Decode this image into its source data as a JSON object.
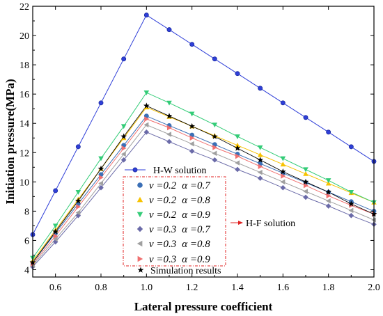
{
  "chart_data": {
    "type": "line",
    "title": "",
    "xlabel": "Lateral pressure coefficient",
    "ylabel": "Initiation pressure(MPa)",
    "xlim": [
      0.5,
      2.0
    ],
    "ylim": [
      3.5,
      22
    ],
    "x_ticks": [
      "0.6",
      "0.8",
      "1.0",
      "1.2",
      "1.4",
      "1.6",
      "1.8",
      "2.0"
    ],
    "x_tick_values": [
      0.6,
      0.8,
      1.0,
      1.2,
      1.4,
      1.6,
      1.8,
      2.0
    ],
    "y_ticks": [
      "4",
      "6",
      "8",
      "10",
      "12",
      "14",
      "16",
      "18",
      "20",
      "22"
    ],
    "y_tick_values": [
      4,
      6,
      8,
      10,
      12,
      14,
      16,
      18,
      20,
      22
    ],
    "grid": false,
    "legend_position": "bottom-left",
    "group_label": "H-F solution",
    "x": [
      0.5,
      0.6,
      0.7,
      0.8,
      0.9,
      1.0,
      1.1,
      1.2,
      1.3,
      1.4,
      1.5,
      1.6,
      1.7,
      1.8,
      1.9,
      2.0
    ],
    "series": [
      {
        "name": "H-W solution",
        "marker": "circle-line",
        "color": "#2f3fd8",
        "values": [
          6.4,
          9.4,
          12.4,
          15.4,
          18.4,
          21.4,
          20.4,
          19.4,
          18.4,
          17.4,
          16.4,
          15.4,
          14.4,
          13.4,
          12.4,
          11.4
        ]
      },
      {
        "nu": "ν =0.2",
        "alpha": "α =0.7",
        "marker": "circle",
        "color": "#3b6fb6",
        "values": [
          4.5,
          6.5,
          8.5,
          10.5,
          12.5,
          14.5,
          13.85,
          13.2,
          12.55,
          11.9,
          11.25,
          10.6,
          9.95,
          9.3,
          8.65,
          8.0
        ]
      },
      {
        "nu": "ν =0.2",
        "alpha": "α =0.8",
        "marker": "triangle-up",
        "color": "#f7c200",
        "values": [
          4.6,
          6.7,
          8.8,
          10.9,
          13.0,
          15.1,
          14.45,
          13.8,
          13.15,
          12.5,
          11.85,
          11.2,
          10.55,
          9.9,
          9.25,
          8.6
        ]
      },
      {
        "nu": "ν =0.2",
        "alpha": "α =0.9",
        "marker": "triangle-down",
        "color": "#33cc77",
        "values": [
          4.8,
          7.0,
          9.3,
          11.6,
          13.8,
          16.1,
          15.4,
          14.65,
          13.9,
          13.1,
          12.35,
          11.6,
          10.85,
          10.1,
          9.3,
          8.6
        ]
      },
      {
        "nu": "ν =0.3",
        "alpha": "α =0.7",
        "marker": "diamond",
        "color": "#6a6aa8",
        "values": [
          4.2,
          5.9,
          7.7,
          9.6,
          11.5,
          13.4,
          12.75,
          12.1,
          11.5,
          10.85,
          10.25,
          9.6,
          8.95,
          8.35,
          7.7,
          7.1
        ]
      },
      {
        "nu": "ν =0.3",
        "alpha": "α =0.8",
        "marker": "triangle-left",
        "color": "#a0a0a0",
        "values": [
          4.3,
          6.1,
          7.9,
          9.9,
          11.9,
          13.9,
          13.25,
          12.6,
          11.95,
          11.3,
          10.65,
          10.0,
          9.35,
          8.7,
          8.05,
          7.4
        ]
      },
      {
        "nu": "ν =0.3",
        "alpha": "α =0.9",
        "marker": "triangle-right",
        "color": "#f07070",
        "values": [
          4.4,
          6.3,
          8.3,
          10.3,
          12.3,
          14.3,
          13.7,
          13.0,
          12.35,
          11.75,
          11.05,
          10.4,
          9.75,
          9.05,
          8.4,
          7.8
        ]
      },
      {
        "name": "Simulation results",
        "marker": "star",
        "color": "#000000",
        "values": [
          4.5,
          6.6,
          8.7,
          10.9,
          13.1,
          15.2,
          14.5,
          13.8,
          13.1,
          12.3,
          11.5,
          10.7,
          10.0,
          9.3,
          8.5,
          7.8
        ]
      }
    ]
  }
}
